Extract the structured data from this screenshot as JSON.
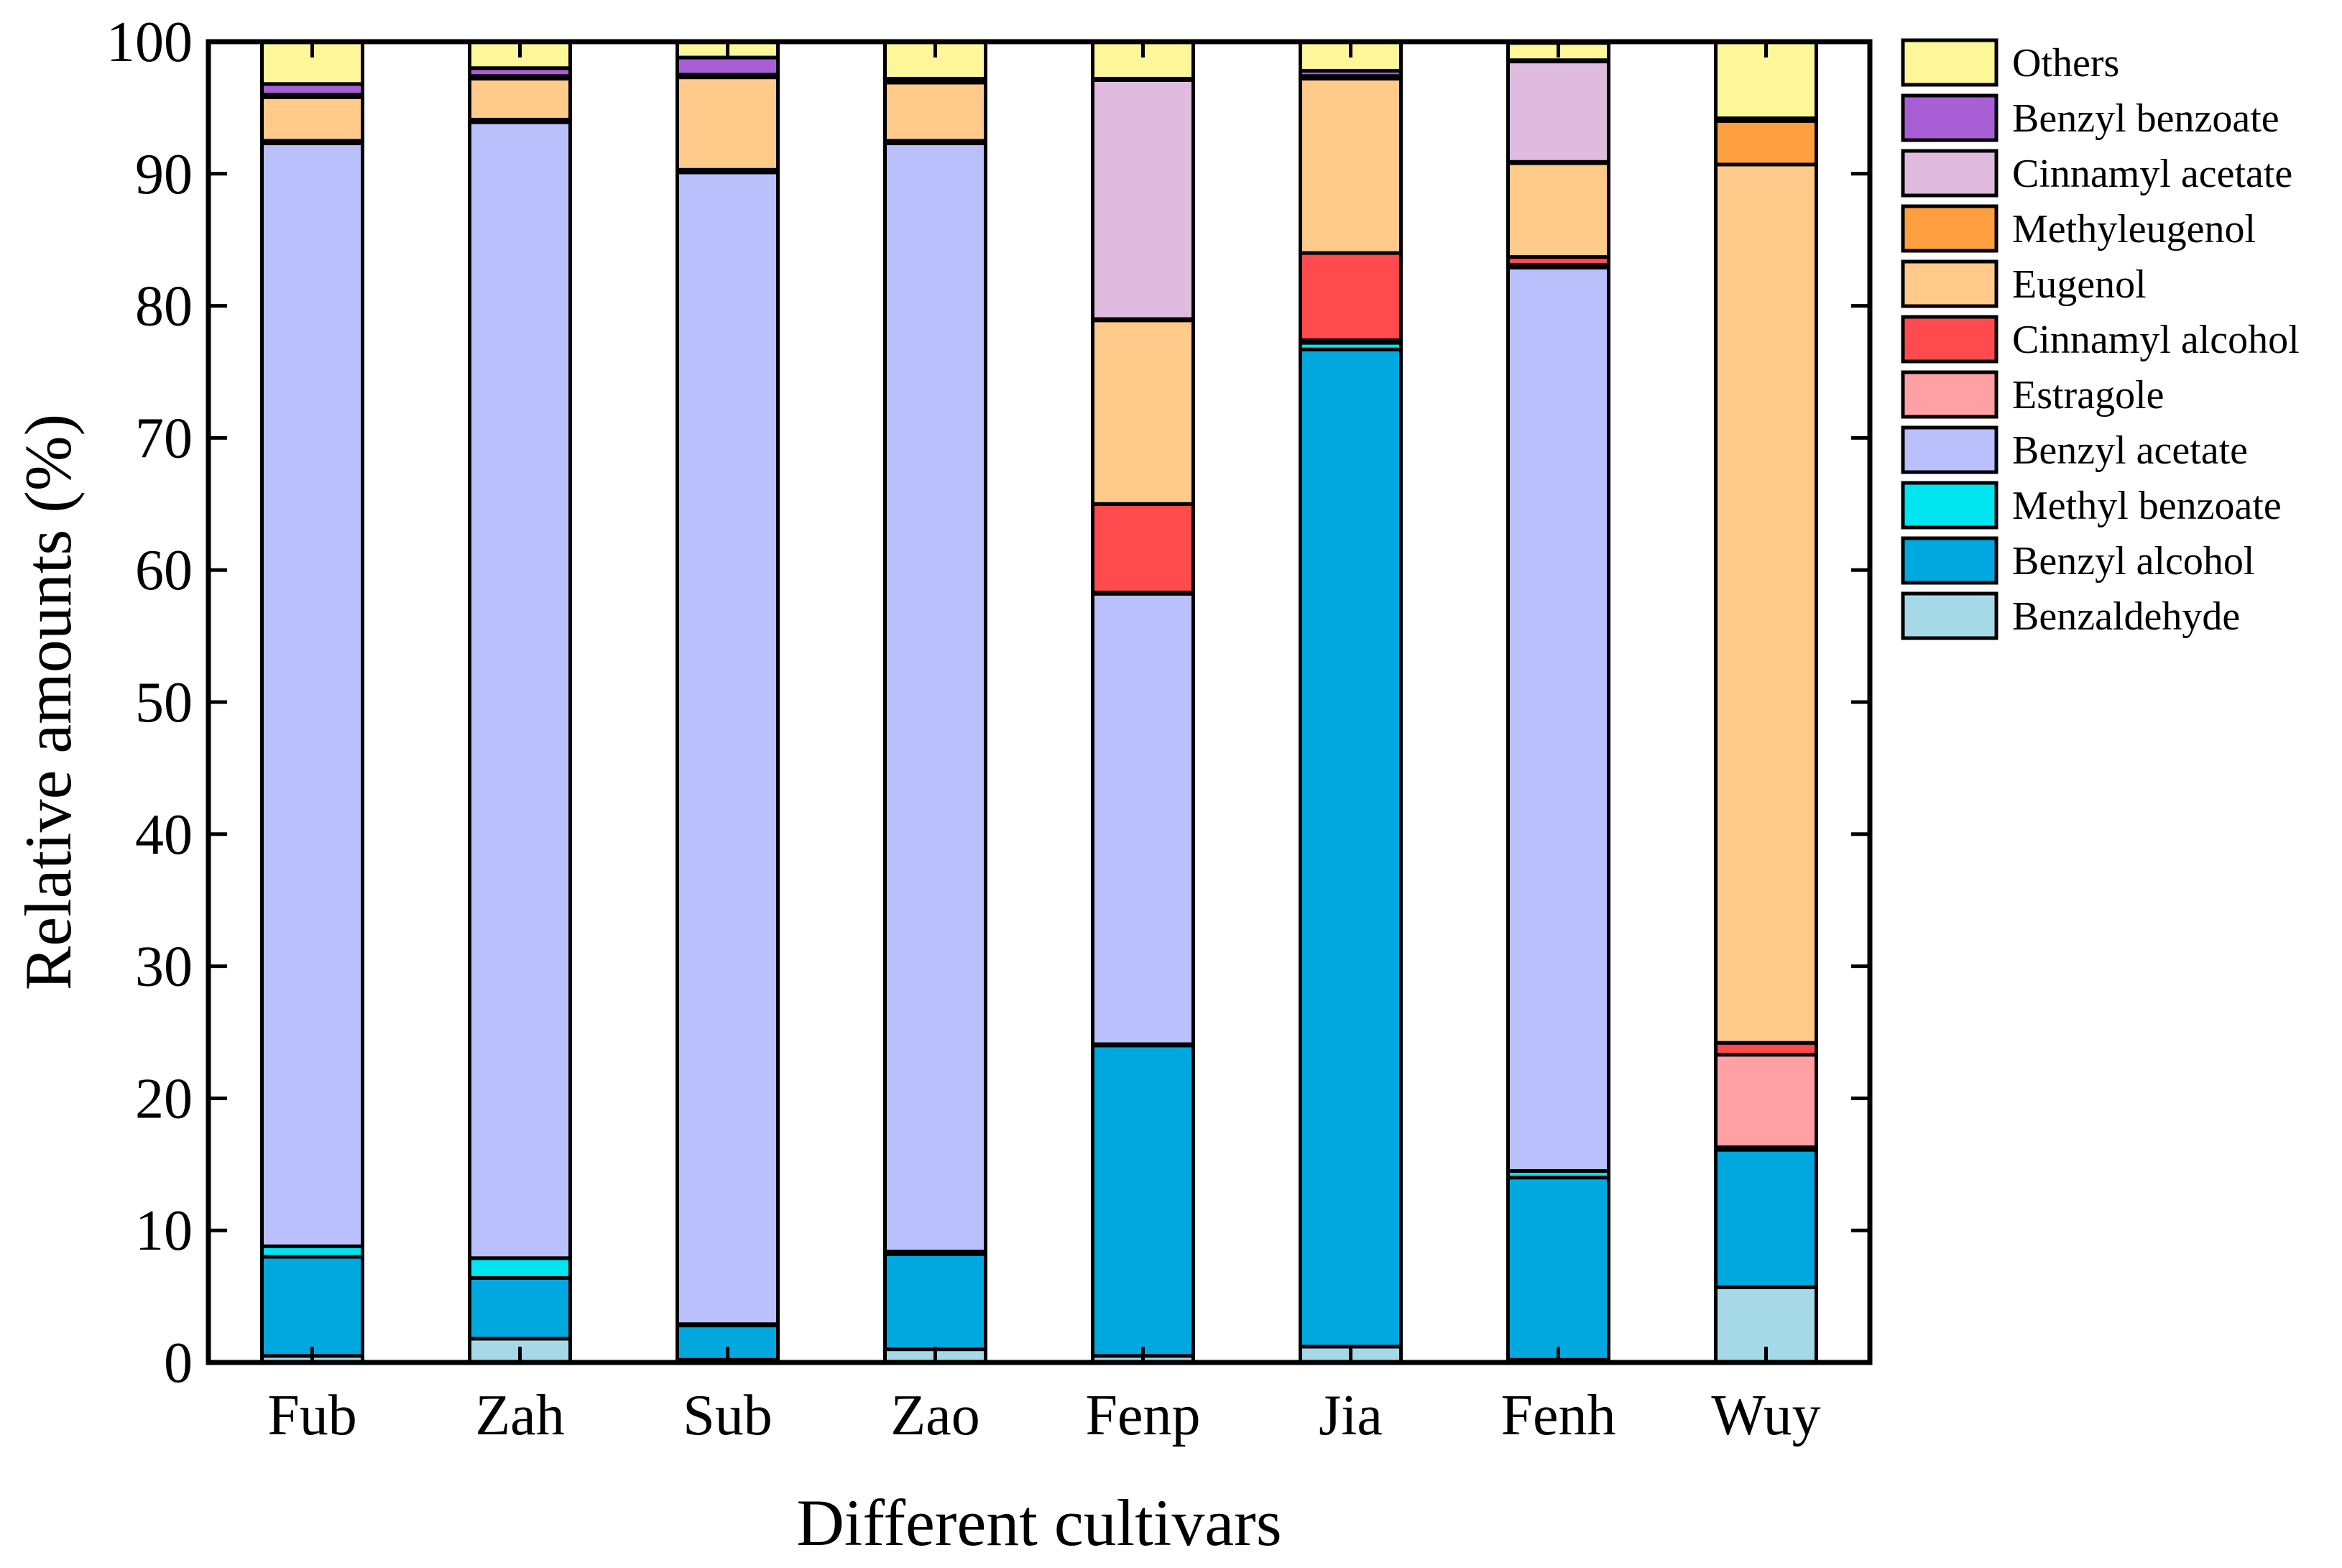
{
  "chart_data": {
    "type": "bar",
    "stacked": true,
    "title": "",
    "xlabel": "Different cultivars",
    "ylabel": "Relative amounts (%)",
    "ylim": [
      0,
      100
    ],
    "yticks": [
      "0",
      "10",
      "20",
      "30",
      "40",
      "50",
      "60",
      "70",
      "80",
      "90",
      "100"
    ],
    "grid": false,
    "legend_position": "right",
    "categories": [
      "Fub",
      "Zah",
      "Sub",
      "Zao",
      "Fenp",
      "Jia",
      "Fenh",
      "Wuy"
    ],
    "series": [
      {
        "name": "Benzaldehyde",
        "color": "#a6d9e8",
        "values": [
          0.5,
          1.8,
          0.2,
          1.0,
          0.5,
          1.2,
          0.2,
          5.7
        ]
      },
      {
        "name": "Benzyl alcohol",
        "color": "#00a8e0",
        "values": [
          7.5,
          4.6,
          2.6,
          7.2,
          23.5,
          75.5,
          13.8,
          10.4
        ]
      },
      {
        "name": "Methyl benzoate",
        "color": "#00e5ef",
        "values": [
          0.8,
          1.5,
          0.1,
          0.2,
          0.1,
          0.5,
          0.5,
          0.1
        ]
      },
      {
        "name": "Benzyl acetate",
        "color": "#b9c0fb",
        "values": [
          83.5,
          86.0,
          87.2,
          83.9,
          34.1,
          0.1,
          68.4,
          0.1
        ]
      },
      {
        "name": "Estragole",
        "color": "#ffa1a4",
        "values": [
          0.1,
          0.1,
          0.1,
          0.1,
          0.1,
          0.1,
          0.2,
          7.0
        ]
      },
      {
        "name": "Cinnamyl alcohol",
        "color": "#ff4a4e",
        "values": [
          0.1,
          0.1,
          0.1,
          0.1,
          6.7,
          6.6,
          0.6,
          0.9
        ]
      },
      {
        "name": "Eugenol",
        "color": "#ffca8a",
        "values": [
          3.3,
          3.1,
          7.0,
          4.4,
          13.9,
          13.2,
          7.1,
          66.5
        ]
      },
      {
        "name": "Methyleugenol",
        "color": "#ffa040",
        "values": [
          0.1,
          0.1,
          0.1,
          0.1,
          0.1,
          0.1,
          0.1,
          3.3
        ]
      },
      {
        "name": "Cinnamyl acetate",
        "color": "#dfbcdf",
        "values": [
          0.1,
          0.1,
          0.1,
          0.1,
          18.1,
          0.1,
          7.6,
          0.1
        ]
      },
      {
        "name": "Benzyl benzoate",
        "color": "#a85fd6",
        "values": [
          0.8,
          0.6,
          1.3,
          0.1,
          0.1,
          0.4,
          0.1,
          0.1
        ]
      },
      {
        "name": "Others",
        "color": "#fdf79a",
        "values": [
          3.2,
          2.0,
          1.2,
          2.8,
          2.8,
          2.2,
          1.3,
          5.8
        ]
      }
    ]
  }
}
